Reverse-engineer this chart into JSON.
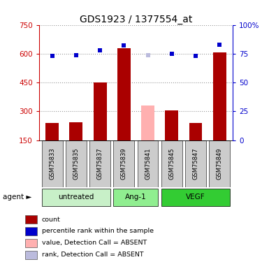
{
  "title": "GDS1923 / 1377554_at",
  "samples": [
    "GSM75833",
    "GSM75835",
    "GSM75837",
    "GSM75839",
    "GSM75841",
    "GSM75845",
    "GSM75847",
    "GSM75849"
  ],
  "bar_values": [
    240,
    245,
    450,
    630,
    330,
    305,
    240,
    605
  ],
  "bar_absent": [
    false,
    false,
    false,
    false,
    true,
    false,
    false,
    false
  ],
  "rank_values": [
    73,
    74,
    78,
    82,
    74,
    75,
    73,
    83
  ],
  "rank_absent": [
    false,
    false,
    false,
    false,
    true,
    false,
    false,
    false
  ],
  "ylim_left": [
    150,
    750
  ],
  "ylim_right": [
    0,
    100
  ],
  "yticks_left": [
    150,
    300,
    450,
    600,
    750
  ],
  "yticks_right": [
    0,
    25,
    50,
    75,
    100
  ],
  "ytick_labels_left": [
    "150",
    "300",
    "450",
    "600",
    "750"
  ],
  "ytick_labels_right": [
    "0",
    "25",
    "50",
    "75",
    "100%"
  ],
  "groups": [
    {
      "label": "untreated",
      "indices": [
        0,
        1,
        2
      ],
      "color": "#c8f0c8"
    },
    {
      "label": "Ang-1",
      "indices": [
        3,
        4
      ],
      "color": "#90ee90"
    },
    {
      "label": "VEGF",
      "indices": [
        5,
        6,
        7
      ],
      "color": "#33cc33"
    }
  ],
  "bar_color_present": "#aa0000",
  "bar_color_absent": "#ffb0b0",
  "rank_color_present": "#0000cc",
  "rank_color_absent": "#bbbbdd",
  "grid_color": "#999999",
  "left_axis_color": "#cc0000",
  "right_axis_color": "#0000cc",
  "sample_area_color": "#cccccc",
  "legend_items": [
    {
      "label": "count",
      "color": "#aa0000"
    },
    {
      "label": "percentile rank within the sample",
      "color": "#0000cc"
    },
    {
      "label": "value, Detection Call = ABSENT",
      "color": "#ffb0b0"
    },
    {
      "label": "rank, Detection Call = ABSENT",
      "color": "#bbbbdd"
    }
  ]
}
